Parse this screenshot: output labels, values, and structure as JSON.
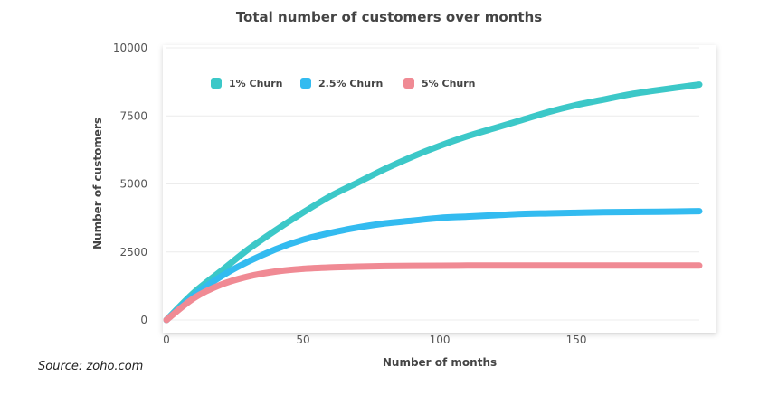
{
  "chart_data": {
    "type": "line",
    "title": "Total number of customers over months",
    "xlabel": "Number of months",
    "ylabel": "Number of customers",
    "xlim": [
      0,
      195
    ],
    "ylim": [
      0,
      10000
    ],
    "x_ticks": [
      0,
      50,
      100,
      150
    ],
    "y_ticks": [
      0,
      2500,
      5000,
      7500,
      10000
    ],
    "x_tick_labels": [
      "0",
      "50",
      "100",
      "150"
    ],
    "y_tick_labels": [
      "0",
      "2500",
      "5000",
      "7500",
      "10000"
    ],
    "grid": "horizontal",
    "legend_position": "top-left",
    "x": [
      0,
      10,
      20,
      30,
      40,
      50,
      60,
      70,
      80,
      90,
      100,
      110,
      120,
      130,
      140,
      150,
      160,
      170,
      180,
      195
    ],
    "series": [
      {
        "name": "1% Churn",
        "color": "#3cc8c8",
        "values": [
          0,
          1000,
          1800,
          2600,
          3300,
          3950,
          4550,
          5050,
          5550,
          6000,
          6400,
          6750,
          7050,
          7350,
          7650,
          7900,
          8100,
          8300,
          8450,
          8650
        ]
      },
      {
        "name": "2.5% Churn",
        "color": "#33bbf0",
        "values": [
          0,
          900,
          1600,
          2150,
          2600,
          2950,
          3200,
          3400,
          3550,
          3650,
          3750,
          3800,
          3850,
          3900,
          3920,
          3940,
          3960,
          3970,
          3980,
          4000
        ]
      },
      {
        "name": "5% Churn",
        "color": "#f08a94",
        "values": [
          0,
          800,
          1300,
          1600,
          1780,
          1880,
          1930,
          1960,
          1980,
          1990,
          1995,
          2000,
          2000,
          2000,
          2000,
          2000,
          2000,
          2000,
          2000,
          2000
        ]
      }
    ]
  },
  "source": "Source: zoho.com"
}
